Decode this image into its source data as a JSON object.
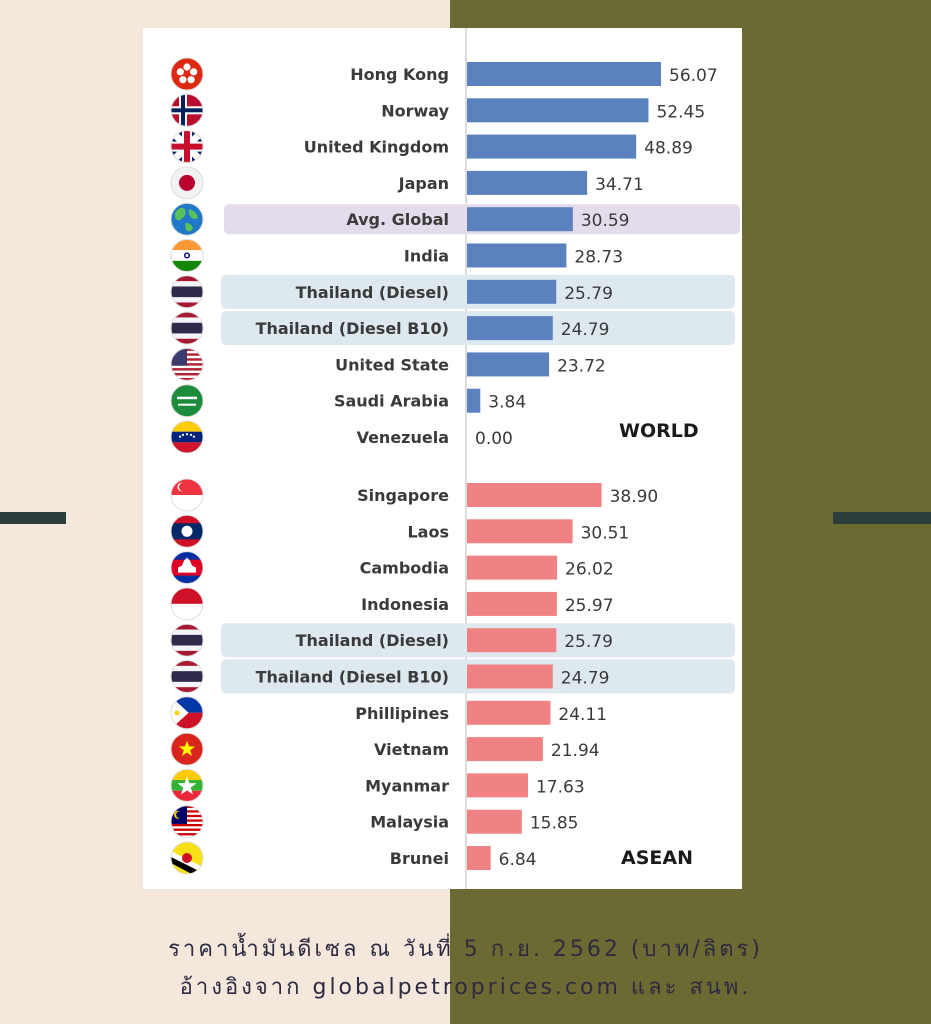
{
  "colors": {
    "background_left": "#f4e8dd",
    "background_right": "#6b6a32",
    "world_bar": "#5b82bf",
    "asean_bar": "#f08283",
    "thailand_highlight": "#dde8ef",
    "global_highlight": "#e4dceb",
    "side_dash": "#2c3e3c"
  },
  "caption": {
    "line1": "ราคาน้ำมันดีเซล ณ วันที่ 5 ก.ย. 2562 (บาท/ลิตร)",
    "line2": "อ้างอิงจาก globalpetroprices.com และ สนพ."
  },
  "chart_data": [
    {
      "type": "bar",
      "orientation": "horizontal",
      "section_label": "WORLD",
      "categories": [
        "Hong Kong",
        "Norway",
        "United Kingdom",
        "Japan",
        "Avg. Global",
        "India",
        "Thailand (Diesel)",
        "Thailand (Diesel B10)",
        "United State",
        "Saudi Arabia",
        "Venezuela"
      ],
      "values": [
        56.07,
        52.45,
        48.89,
        34.71,
        30.59,
        28.73,
        25.79,
        24.79,
        23.72,
        3.84,
        0.0
      ],
      "value_labels": [
        "56.07",
        "52.45",
        "48.89",
        "34.71",
        "30.59",
        "28.73",
        "25.79",
        "24.79",
        "23.72",
        "3.84",
        "0.00"
      ],
      "flag_icons": [
        "hong-kong-flag-icon",
        "norway-flag-icon",
        "uk-flag-icon",
        "japan-flag-icon",
        "globe-icon",
        "india-flag-icon",
        "thailand-flag-icon",
        "thailand-flag-icon",
        "usa-flag-icon",
        "saudi-arabia-flag-icon",
        "venezuela-flag-icon"
      ],
      "highlight": [
        "",
        "",
        "",
        "",
        "global",
        "",
        "thailand",
        "thailand",
        "",
        "",
        ""
      ],
      "xlim": [
        0,
        60
      ]
    },
    {
      "type": "bar",
      "orientation": "horizontal",
      "section_label": "ASEAN",
      "categories": [
        "Singapore",
        "Laos",
        "Cambodia",
        "Indonesia",
        "Thailand (Diesel)",
        "Thailand (Diesel B10)",
        "Phillipines",
        "Vietnam",
        "Myanmar",
        "Malaysia",
        "Brunei"
      ],
      "values": [
        38.9,
        30.51,
        26.02,
        25.97,
        25.79,
        24.79,
        24.11,
        21.94,
        17.63,
        15.85,
        6.84
      ],
      "value_labels": [
        "38.90",
        "30.51",
        "26.02",
        "25.97",
        "25.79",
        "24.79",
        "24.11",
        "21.94",
        "17.63",
        "15.85",
        "6.84"
      ],
      "flag_icons": [
        "singapore-flag-icon",
        "laos-flag-icon",
        "cambodia-flag-icon",
        "indonesia-flag-icon",
        "thailand-flag-icon",
        "thailand-flag-icon",
        "philippines-flag-icon",
        "vietnam-flag-icon",
        "myanmar-flag-icon",
        "malaysia-flag-icon",
        "brunei-flag-icon"
      ],
      "highlight": [
        "",
        "",
        "",
        "",
        "thailand",
        "thailand",
        "",
        "",
        "",
        "",
        ""
      ],
      "xlim": [
        0,
        60
      ]
    }
  ]
}
